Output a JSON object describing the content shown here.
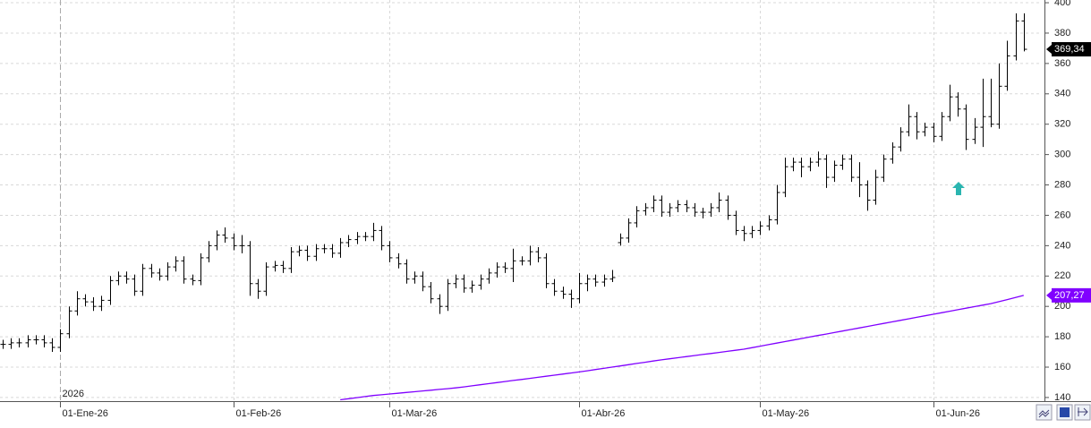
{
  "chart_data": {
    "type": "ohlc",
    "annotation": "2026",
    "grid": true,
    "ylim": [
      137.6,
      401.8
    ],
    "yticks": [
      140,
      160,
      180,
      200,
      220,
      240,
      260,
      280,
      300,
      320,
      340,
      360,
      380,
      400
    ],
    "categories": [
      null,
      null,
      null,
      null,
      null,
      null,
      null,
      "01-Ene-26",
      null,
      null,
      null,
      null,
      null,
      null,
      null,
      null,
      null,
      null,
      null,
      null,
      null,
      null,
      null,
      null,
      null,
      null,
      null,
      null,
      "01-Feb-26",
      null,
      null,
      null,
      null,
      null,
      null,
      null,
      null,
      null,
      null,
      null,
      null,
      null,
      null,
      null,
      null,
      null,
      null,
      "01-Mar-26",
      null,
      null,
      null,
      null,
      null,
      null,
      null,
      null,
      null,
      null,
      null,
      null,
      null,
      null,
      null,
      null,
      null,
      null,
      null,
      null,
      null,
      null,
      "01-Abr-26",
      null,
      null,
      null,
      null,
      null,
      null,
      null,
      null,
      null,
      null,
      null,
      null,
      null,
      null,
      null,
      null,
      null,
      null,
      null,
      null,
      null,
      "01-May-26",
      null,
      null,
      null,
      null,
      null,
      null,
      null,
      null,
      null,
      null,
      null,
      null,
      null,
      null,
      null,
      null,
      null,
      null,
      null,
      null,
      "01-Jun-26",
      null,
      null,
      null,
      null,
      null,
      null,
      null,
      null,
      null,
      null,
      null
    ],
    "price": {
      "color": "#000000",
      "open": [
        175,
        175,
        176,
        176,
        178,
        178,
        176,
        173,
        182,
        197,
        205,
        203,
        200,
        204,
        217,
        220,
        218,
        210,
        225,
        222,
        220,
        226,
        230,
        218,
        217,
        232,
        240,
        247,
        245,
        240,
        240,
        215,
        210,
        226,
        227,
        225,
        236,
        237,
        233,
        238,
        238,
        235,
        242,
        244,
        246,
        246,
        250,
        240,
        232,
        228,
        218,
        220,
        213,
        205,
        200,
        215,
        218,
        212,
        214,
        218,
        222,
        226,
        225,
        230,
        230,
        236,
        232,
        215,
        210,
        208,
        205,
        215,
        218,
        216,
        218,
        242,
        245,
        255,
        263,
        265,
        270,
        262,
        265,
        267,
        265,
        262,
        262,
        265,
        270,
        260,
        250,
        248,
        250,
        253,
        257,
        275,
        292,
        295,
        292,
        295,
        297,
        285,
        293,
        297,
        285,
        280,
        270,
        285,
        297,
        305,
        315,
        325,
        315,
        318,
        312,
        325,
        338,
        330,
        310,
        318,
        325,
        320,
        345,
        365,
        388
      ],
      "high": [
        178,
        179,
        179,
        181,
        181,
        181,
        179,
        185,
        200,
        210,
        208,
        206,
        207,
        220,
        223,
        223,
        221,
        228,
        228,
        225,
        229,
        233,
        233,
        221,
        235,
        243,
        250,
        252,
        248,
        247,
        243,
        218,
        229,
        230,
        230,
        239,
        240,
        240,
        241,
        241,
        241,
        245,
        247,
        249,
        249,
        255,
        253,
        243,
        235,
        231,
        223,
        223,
        216,
        208,
        218,
        221,
        221,
        217,
        221,
        225,
        229,
        229,
        238,
        233,
        240,
        239,
        235,
        218,
        213,
        211,
        222,
        221,
        221,
        221,
        224,
        248,
        258,
        266,
        268,
        273,
        273,
        268,
        270,
        270,
        268,
        265,
        268,
        275,
        273,
        263,
        253,
        253,
        256,
        260,
        280,
        298,
        298,
        298,
        298,
        302,
        300,
        296,
        300,
        300,
        295,
        283,
        290,
        300,
        308,
        318,
        333,
        328,
        321,
        321,
        328,
        346,
        341,
        333,
        324,
        350,
        350,
        360,
        375,
        393,
        393
      ],
      "low": [
        172,
        172,
        173,
        173,
        175,
        173,
        170,
        170,
        179,
        194,
        200,
        197,
        197,
        201,
        214,
        215,
        207,
        207,
        219,
        217,
        217,
        223,
        215,
        214,
        214,
        229,
        237,
        242,
        237,
        235,
        207,
        205,
        207,
        223,
        222,
        222,
        233,
        230,
        230,
        235,
        232,
        232,
        239,
        241,
        243,
        243,
        237,
        229,
        225,
        215,
        215,
        210,
        202,
        195,
        197,
        212,
        209,
        209,
        211,
        215,
        219,
        222,
        216,
        227,
        227,
        229,
        212,
        207,
        205,
        199,
        202,
        210,
        213,
        213,
        216,
        240,
        242,
        252,
        260,
        262,
        259,
        259,
        262,
        262,
        259,
        258,
        259,
        262,
        257,
        247,
        243,
        245,
        247,
        250,
        254,
        272,
        289,
        285,
        289,
        292,
        278,
        282,
        290,
        282,
        272,
        263,
        267,
        282,
        294,
        302,
        312,
        310,
        312,
        308,
        309,
        322,
        325,
        303,
        307,
        305,
        318,
        317,
        342,
        362,
        368
      ],
      "close": [
        175,
        176,
        176,
        178,
        178,
        176,
        173,
        182,
        197,
        205,
        203,
        200,
        204,
        217,
        220,
        218,
        210,
        225,
        222,
        220,
        226,
        230,
        218,
        217,
        232,
        240,
        247,
        245,
        240,
        240,
        215,
        210,
        226,
        227,
        225,
        236,
        237,
        233,
        238,
        238,
        235,
        242,
        244,
        246,
        246,
        250,
        240,
        232,
        228,
        218,
        220,
        213,
        205,
        200,
        215,
        218,
        212,
        214,
        218,
        222,
        226,
        225,
        230,
        230,
        236,
        232,
        215,
        210,
        208,
        205,
        215,
        218,
        216,
        218,
        219,
        245,
        255,
        263,
        265,
        270,
        262,
        265,
        267,
        265,
        262,
        262,
        265,
        270,
        260,
        250,
        248,
        250,
        253,
        257,
        275,
        292,
        295,
        292,
        295,
        297,
        285,
        293,
        297,
        285,
        280,
        270,
        285,
        297,
        305,
        315,
        325,
        315,
        318,
        312,
        325,
        338,
        330,
        310,
        318,
        325,
        320,
        345,
        365,
        388,
        369.34
      ],
      "value_labels": [
        null,
        null,
        null,
        null,
        null,
        null,
        null,
        null,
        null,
        null,
        null,
        null,
        null,
        null,
        null,
        null,
        null,
        null,
        null,
        null,
        null,
        null,
        null,
        null,
        null,
        null,
        null,
        null,
        null,
        null,
        null,
        null,
        null,
        null,
        null,
        null,
        null,
        null,
        null,
        null,
        null,
        null,
        null,
        null,
        null,
        null,
        null,
        null,
        null,
        null,
        null,
        null,
        null,
        null,
        null,
        null,
        null,
        null,
        null,
        null,
        null,
        null,
        null,
        null,
        null,
        null,
        null,
        null,
        null,
        null,
        null,
        null,
        null,
        null,
        null,
        null,
        null,
        null,
        null,
        null,
        null,
        null,
        null,
        null,
        null,
        null,
        null,
        null,
        null,
        null,
        null,
        null,
        null,
        null,
        null,
        null,
        null,
        null,
        null,
        null,
        null,
        null,
        null,
        null,
        null,
        null,
        null,
        null,
        null,
        null,
        null,
        null,
        null,
        null,
        null,
        null,
        null,
        null,
        null,
        null,
        null,
        null,
        null,
        null,
        "369,34"
      ]
    },
    "line": {
      "color": "#8000ff",
      "values": [
        null,
        null,
        null,
        null,
        null,
        null,
        null,
        null,
        null,
        null,
        null,
        null,
        null,
        null,
        null,
        null,
        null,
        null,
        null,
        null,
        null,
        null,
        null,
        null,
        null,
        null,
        null,
        null,
        null,
        null,
        null,
        null,
        null,
        null,
        null,
        null,
        null,
        null,
        null,
        null,
        null,
        138.5,
        139.2,
        139.9,
        140.6,
        141.3,
        141.8,
        142.3,
        142.8,
        143.3,
        143.8,
        144.3,
        144.8,
        145.3,
        145.8,
        146.3,
        147,
        147.7,
        148.4,
        149.1,
        149.8,
        150.5,
        151.2,
        151.9,
        152.6,
        153.3,
        154,
        154.7,
        155.4,
        156.1,
        156.8,
        157.6,
        158.4,
        159.2,
        160,
        160.8,
        161.6,
        162.4,
        163.2,
        164,
        164.8,
        165.5,
        166.2,
        166.9,
        167.6,
        168.3,
        169,
        169.7,
        170.4,
        171.1,
        171.8,
        172.8,
        173.8,
        174.8,
        175.8,
        176.8,
        177.8,
        178.8,
        179.8,
        180.8,
        181.8,
        182.8,
        183.8,
        184.8,
        185.8,
        186.8,
        187.8,
        188.8,
        189.8,
        190.8,
        191.8,
        192.8,
        193.8,
        194.8,
        195.8,
        196.8,
        197.8,
        198.8,
        199.8,
        200.8,
        201.8,
        203.1,
        204.5,
        205.9,
        207.27
      ],
      "value_labels": [
        null,
        null,
        null,
        null,
        null,
        null,
        null,
        null,
        null,
        null,
        null,
        null,
        null,
        null,
        null,
        null,
        null,
        null,
        null,
        null,
        null,
        null,
        null,
        null,
        null,
        null,
        null,
        null,
        null,
        null,
        null,
        null,
        null,
        null,
        null,
        null,
        null,
        null,
        null,
        null,
        null,
        null,
        null,
        null,
        null,
        null,
        null,
        null,
        null,
        null,
        null,
        null,
        null,
        null,
        null,
        null,
        null,
        null,
        null,
        null,
        null,
        null,
        null,
        null,
        null,
        null,
        null,
        null,
        null,
        null,
        null,
        null,
        null,
        null,
        null,
        null,
        null,
        null,
        null,
        null,
        null,
        null,
        null,
        null,
        null,
        null,
        null,
        null,
        null,
        null,
        null,
        null,
        null,
        null,
        null,
        null,
        null,
        null,
        null,
        null,
        null,
        null,
        null,
        null,
        null,
        null,
        null,
        null,
        null,
        null,
        null,
        null,
        null,
        null,
        null,
        null,
        null,
        null,
        null,
        null,
        null,
        null,
        null,
        null,
        "207,27"
      ]
    }
  }
}
